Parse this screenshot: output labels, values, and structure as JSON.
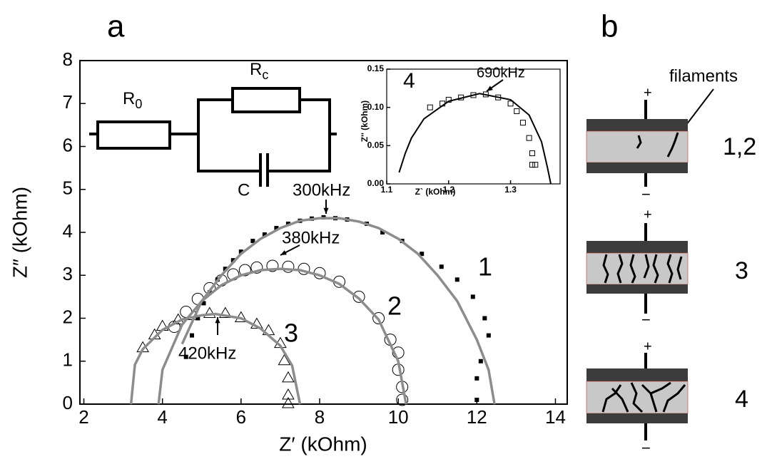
{
  "chart_data": [
    {
      "type": "scatter",
      "title": "a",
      "xlabel": "Z′ (kOhm)",
      "ylabel": "Z″ (kOhm)",
      "xlim": [
        1.9,
        14.3
      ],
      "ylim": [
        0,
        8
      ],
      "xticks": [
        2,
        4,
        6,
        8,
        10,
        12,
        14
      ],
      "yticks": [
        0,
        1,
        2,
        3,
        4,
        5,
        6,
        7,
        8
      ],
      "series": [
        {
          "name": "1",
          "marker": "square",
          "color": "#000000",
          "x": [
            4.6,
            4.75,
            4.9,
            5.05,
            5.2,
            5.4,
            5.6,
            5.8,
            6.0,
            6.3,
            6.6,
            6.9,
            7.2,
            7.5,
            7.8,
            8.1,
            8.4,
            8.7,
            9.2,
            9.6,
            10.1,
            10.6,
            11.1,
            11.5,
            11.9,
            12.2,
            12.3,
            12.1,
            12.0,
            12.0
          ],
          "values": [
            1.1,
            1.6,
            2.0,
            2.35,
            2.6,
            2.9,
            3.15,
            3.35,
            3.55,
            3.8,
            3.95,
            4.1,
            4.2,
            4.27,
            4.32,
            4.35,
            4.33,
            4.3,
            4.2,
            4.0,
            3.8,
            3.5,
            3.2,
            2.9,
            2.5,
            2.0,
            1.6,
            1.0,
            0.6,
            0.1
          ]
        },
        {
          "name": "2",
          "marker": "circle",
          "color": "#000000",
          "x": [
            4.3,
            4.6,
            4.9,
            5.2,
            5.5,
            5.8,
            6.1,
            6.4,
            6.8,
            7.2,
            7.6,
            8.0,
            8.5,
            9.0,
            9.5,
            9.8,
            10.0,
            10.0,
            10.1,
            10.1
          ],
          "values": [
            1.8,
            2.15,
            2.45,
            2.7,
            2.88,
            3.02,
            3.12,
            3.18,
            3.22,
            3.2,
            3.15,
            3.05,
            2.85,
            2.5,
            2.0,
            1.5,
            1.2,
            0.8,
            0.4,
            0.1
          ]
        },
        {
          "name": "3",
          "marker": "triangle",
          "color": "#000000",
          "x": [
            3.5,
            3.8,
            4.0,
            4.4,
            4.8,
            5.2,
            5.6,
            6.0,
            6.4,
            6.7,
            7.0,
            7.1,
            7.2,
            7.2,
            7.2
          ],
          "values": [
            1.3,
            1.6,
            1.8,
            1.95,
            2.05,
            2.1,
            2.1,
            2.0,
            1.85,
            1.7,
            1.4,
            1.0,
            0.6,
            0.2,
            0.0
          ]
        },
        {
          "marker": "line",
          "color": "#8c8c8c",
          "x": [
            4.5,
            5.0,
            5.5,
            6.0,
            6.5,
            7.0,
            7.5,
            8.0,
            8.5,
            9.0,
            9.5,
            10.0,
            10.5,
            11.0,
            11.5,
            12.0,
            12.3,
            12.45
          ],
          "values": [
            1.4,
            2.4,
            3.0,
            3.5,
            3.85,
            4.1,
            4.27,
            4.33,
            4.33,
            4.25,
            4.1,
            3.85,
            3.5,
            3.0,
            2.4,
            1.5,
            0.8,
            0.0
          ]
        },
        {
          "marker": "line",
          "color": "#8c8c8c",
          "x": [
            3.9,
            4.0,
            4.5,
            5.0,
            5.5,
            6.0,
            6.5,
            7.0,
            7.5,
            8.0,
            8.5,
            9.0,
            9.5,
            10.0,
            10.2
          ],
          "values": [
            0.0,
            0.8,
            1.85,
            2.4,
            2.77,
            3.0,
            3.12,
            3.15,
            3.12,
            3.0,
            2.8,
            2.46,
            1.97,
            1.0,
            0.0
          ]
        },
        {
          "marker": "line",
          "color": "#8c8c8c",
          "x": [
            3.2,
            3.3,
            3.5,
            4.0,
            4.5,
            5.0,
            5.35,
            6.0,
            6.5,
            7.0,
            7.3,
            7.5
          ],
          "values": [
            0.0,
            0.92,
            1.28,
            1.73,
            1.97,
            2.07,
            2.1,
            2.0,
            1.76,
            1.36,
            0.9,
            0.0
          ]
        }
      ],
      "annotations": [
        {
          "text": "300kHz"
        },
        {
          "text": "380kHz"
        },
        {
          "text": "420kHz"
        }
      ],
      "circuit": {
        "r0_label": "R",
        "r0_subscript": "0",
        "rc_label": "R",
        "rc_subscript": "c",
        "c_label": "C"
      }
    },
    {
      "type": "scatter",
      "xlabel": "Z` (kOhm)",
      "ylabel": "Z'' (kOhm)",
      "xlim": [
        1.1,
        1.38
      ],
      "ylim": [
        0,
        0.15
      ],
      "xticks": [
        1.1,
        1.2,
        1.3
      ],
      "yticks": [
        {
          "value": 0,
          "label": "0.00"
        },
        0.05,
        {
          "value": 0.1,
          "label": "0.10"
        },
        0.15
      ],
      "series": [
        {
          "name": "4",
          "marker": "osquare",
          "color": "#000000",
          "x": [
            1.17,
            1.19,
            1.2,
            1.22,
            1.24,
            1.26,
            1.28,
            1.3,
            1.31,
            1.32,
            1.33,
            1.335,
            1.335,
            1.34
          ],
          "values": [
            0.1,
            0.105,
            0.11,
            0.113,
            0.116,
            0.117,
            0.113,
            0.105,
            0.095,
            0.08,
            0.06,
            0.04,
            0.025,
            0.025
          ]
        },
        {
          "marker": "line",
          "color": "#000000",
          "x": [
            1.12,
            1.13,
            1.14,
            1.16,
            1.2,
            1.25,
            1.3,
            1.33,
            1.35,
            1.36,
            1.365
          ],
          "values": [
            0.015,
            0.04,
            0.06,
            0.085,
            0.108,
            0.118,
            0.11,
            0.09,
            0.055,
            0.02,
            0.0
          ]
        }
      ],
      "annotations": [
        {
          "text": "690kHz"
        }
      ]
    }
  ],
  "schematic": {
    "title": "b",
    "filaments_label": "filaments",
    "devices": [
      {
        "label": "1,2",
        "plus": "+",
        "minus": "−"
      },
      {
        "label": "3",
        "plus": "+",
        "minus": "−"
      },
      {
        "label": "4",
        "plus": "+",
        "minus": "−"
      }
    ]
  }
}
